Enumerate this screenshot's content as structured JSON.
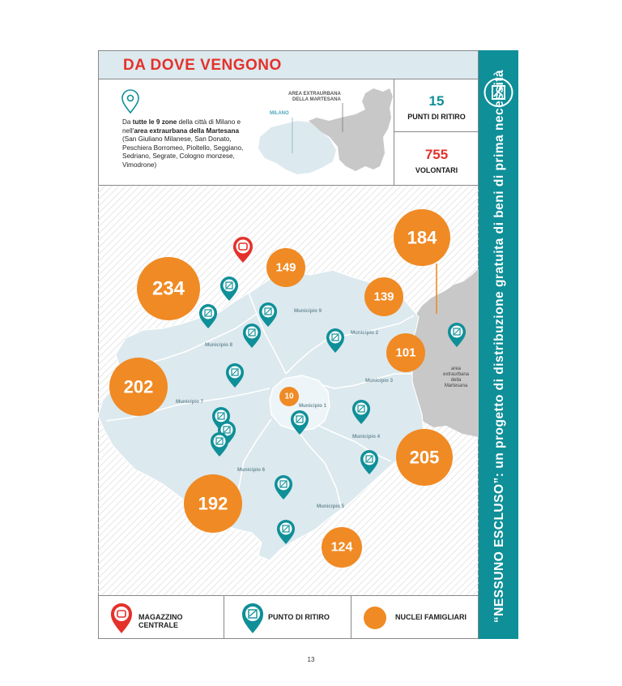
{
  "title": "DA DOVE VENGONO",
  "description": {
    "part1": "Da ",
    "part2": "tutte le 9 zone",
    "part3": " della città di Milano e nell'",
    "part4": "area extraurbana della Martesana",
    "part5": " (San Giuliano Milanese, San Donato, Peschiera Borromeo, Pioltello, Seggiano, Sedriano, Segrate, Cologno monzese, Vimodrone)"
  },
  "mini_map": {
    "area_label_1": "AREA EXTRAURBANA",
    "area_label_2": "DELLA MARTESANA",
    "milano_label": "MILANO"
  },
  "stats": [
    {
      "value": "15",
      "label": "PUNTI DI RITIRO",
      "color": "#0f8f98"
    },
    {
      "value": "755",
      "label": "VOLONTARI",
      "color": "#e4312b"
    }
  ],
  "sidebar_text": "“NESSUNO ESCLUSO”: un progetto di distribuzione gratuita di beni di prima necessità",
  "map": {
    "municipi": [
      "Municipio 1",
      "Municipio 2",
      "Municipio 3",
      "Municipio 4",
      "Municipio 5",
      "Municipio 6",
      "Municipio 7",
      "Municipio 8",
      "Municipio 9"
    ],
    "martesana_label": [
      "area",
      "extraurbana",
      "della",
      "Martesana"
    ],
    "families": [
      "234",
      "149",
      "184",
      "139",
      "101",
      "202",
      "10",
      "205",
      "192",
      "124"
    ]
  },
  "legend": {
    "warehouse": "MAGAZZINO CENTRALE",
    "pickup": "PUNTO DI RITIRO",
    "families": "NUCLEI FAMIGLIARI"
  },
  "colors": {
    "teal": "#0f8f98",
    "red": "#e4312b",
    "orange": "#f08a24",
    "map_light": "#dce9ee",
    "grey": "#c8c8c8"
  },
  "page_number": "13"
}
